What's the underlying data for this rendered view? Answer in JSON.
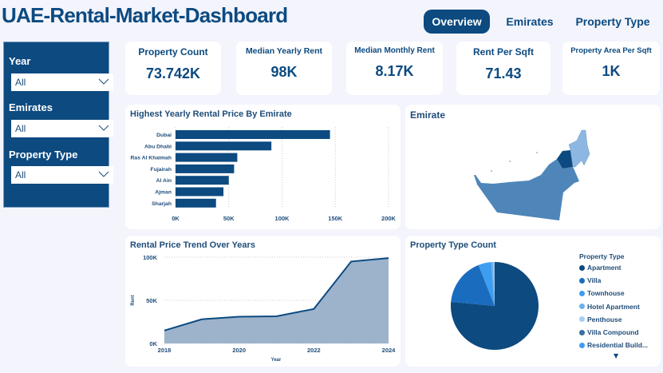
{
  "header": {
    "title": "UAE-Rental-Market-Dashboard",
    "tabs": [
      {
        "label": "Overview",
        "active": true
      },
      {
        "label": "Emirates",
        "active": false
      },
      {
        "label": "Property Type",
        "active": false
      }
    ]
  },
  "filters": [
    {
      "label": "Year",
      "value": "All"
    },
    {
      "label": "Emirates",
      "value": "All"
    },
    {
      "label": "Property Type",
      "value": "All"
    }
  ],
  "kpis": [
    {
      "label": "Property Count",
      "value": "73.742K"
    },
    {
      "label": "Median Yearly Rent",
      "value": "98K"
    },
    {
      "label": "Median Monthly Rent",
      "value": "8.17K"
    },
    {
      "label": "Rent Per Sqft",
      "value": "71.43"
    },
    {
      "label": "Property Area Per Sqft",
      "value": "1K"
    }
  ],
  "colors": {
    "primary": "#0c4a80",
    "area_fill": "#9db3cb",
    "background": "#f3f4fc"
  },
  "map": {
    "title": "Emirate",
    "colors": {
      "abu_dhabi": "#4f86ba",
      "dubai": "#0c4a80",
      "northern": "#8db7e2"
    }
  },
  "chart_data": [
    {
      "type": "bar",
      "orientation": "horizontal",
      "title": "Highest Yearly Rental Price By Emirate",
      "categories": [
        "Dubai",
        "Abu Dhabi",
        "Ras Al Khaimah",
        "Fujairah",
        "Al Ain",
        "Ajman",
        "Sharjah"
      ],
      "values": [
        145000,
        90000,
        58000,
        55000,
        50000,
        45000,
        38000
      ],
      "xlim": [
        0,
        200000
      ],
      "ticks": [
        "0K",
        "50K",
        "100K",
        "150K",
        "200K"
      ],
      "grid": true
    },
    {
      "type": "area",
      "title": "Rental Price Trend Over Years",
      "xlabel": "Year",
      "ylabel": "Rent",
      "x": [
        2018,
        2019,
        2020,
        2021,
        2022,
        2023,
        2024
      ],
      "values": [
        15000,
        28000,
        31000,
        31500,
        40000,
        95000,
        99000
      ],
      "ylim": [
        0,
        100000
      ],
      "yticks": [
        "0K",
        "50K",
        "100K"
      ],
      "xticks": [
        "2018",
        "2020",
        "2022",
        "2024"
      ],
      "grid": true
    },
    {
      "type": "pie",
      "title": "Property Type Count",
      "legend_title": "Property Type",
      "legend_placement": "right",
      "categories": [
        "Apartment",
        "Villa",
        "Townhouse",
        "Hotel Apartment",
        "Penthouse",
        "Villa Compound",
        "Residential Build..."
      ],
      "values": [
        76.5,
        17.5,
        4.7,
        0.8,
        0.4,
        0.05,
        0.05
      ],
      "colors": [
        "#0c4a80",
        "#1a6cbf",
        "#3d9df0",
        "#6cb0ee",
        "#a9cdf3",
        "#3a6e9e",
        "#3d9df0"
      ]
    }
  ]
}
